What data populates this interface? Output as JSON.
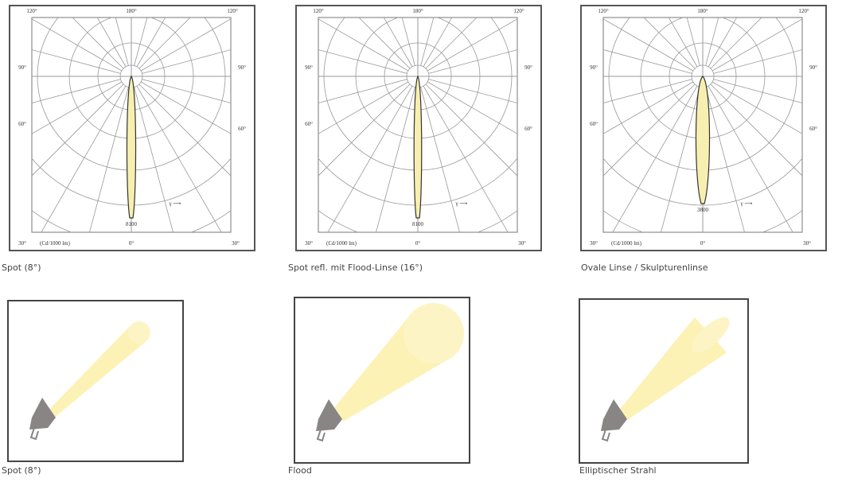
{
  "polar_diagrams": [
    {
      "labels": {
        "top_left": "120°",
        "top_center": "180°",
        "top_right": "120°",
        "left_upper": "90°",
        "right_upper": "90°",
        "left_lower": "60°",
        "right_lower": "60°",
        "bottom_left": "30°",
        "unit": "(Cd/1000 lm)",
        "bottom_center": "0°",
        "bottom_right": "30°",
        "peak": "8100",
        "gamma": "γ ⟶"
      },
      "caption": "Spot (8°)"
    },
    {
      "labels": {
        "top_left": "120°",
        "top_center": "180°",
        "top_right": "120°",
        "left_upper": "90°",
        "right_upper": "90°",
        "left_lower": "60°",
        "right_lower": "60°",
        "bottom_left": "30°",
        "unit": "(Cd/1000 lm)",
        "bottom_center": "0°",
        "bottom_right": "30°",
        "peak": "8100",
        "gamma": "γ ⟶"
      },
      "caption": "Spot refl. mit Flood-Linse (16°)"
    },
    {
      "labels": {
        "top_left": "120°",
        "top_center": "180°",
        "top_right": "120°",
        "left_upper": "90°",
        "right_upper": "90°",
        "left_lower": "60°",
        "right_lower": "60°",
        "bottom_left": "30°",
        "unit": "(Cd/1000 lm)",
        "bottom_center": "0°",
        "bottom_right": "30°",
        "peak": "3800",
        "gamma": "γ ⟶"
      },
      "caption": "Ovale Linse / Skulpturenlinse"
    }
  ],
  "beam_illustrations": [
    {
      "caption": "Spot (8°)"
    },
    {
      "caption": "Flood"
    },
    {
      "caption": "Elliptischer Strahl"
    }
  ]
}
